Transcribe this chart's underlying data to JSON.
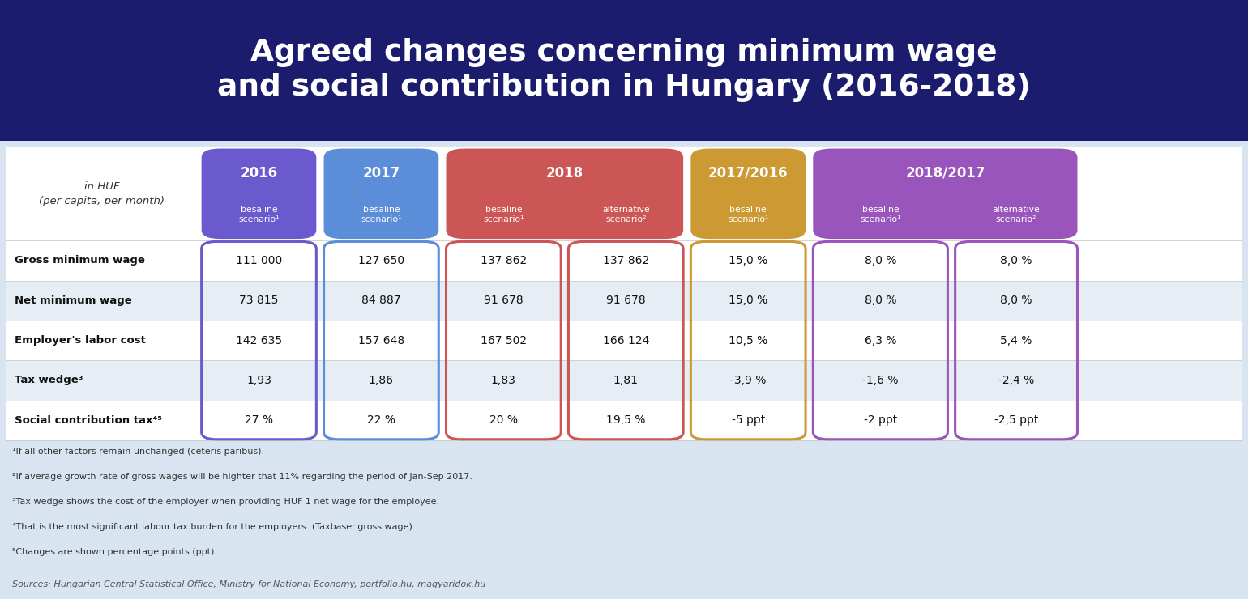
{
  "title_line1": "Agreed changes concerning minimum wage",
  "title_line2": "and social contribution in Hungary (2016-2018)",
  "title_bg_color": "#1c1c6e",
  "title_text_color": "#ffffff",
  "header_label": "in HUF\n(per capita, per month)",
  "row_labels": [
    "Gross minimum wage",
    "Net minimum wage",
    "Employer's labor cost",
    "Tax wedge³",
    "Social contribution tax⁴⁵"
  ],
  "table_data": [
    [
      "111 000",
      "127 650",
      "137 862",
      "137 862",
      "15,0 %",
      "8,0 %",
      "8,0 %"
    ],
    [
      "73 815",
      "84 887",
      "91 678",
      "91 678",
      "15,0 %",
      "8,0 %",
      "8,0 %"
    ],
    [
      "142 635",
      "157 648",
      "167 502",
      "166 124",
      "10,5 %",
      "6,3 %",
      "5,4 %"
    ],
    [
      "1,93",
      "1,86",
      "1,83",
      "1,81",
      "-3,9 %",
      "-1,6 %",
      "-2,4 %"
    ],
    [
      "27 %",
      "22 %",
      "20 %",
      "19,5 %",
      "-5 ppt",
      "-2 ppt",
      "-2,5 ppt"
    ]
  ],
  "groups": [
    {
      "label": "2016",
      "cols": [
        0
      ],
      "color": "#6a5acd"
    },
    {
      "label": "2017",
      "cols": [
        1
      ],
      "color": "#5b8dd9"
    },
    {
      "label": "2018",
      "cols": [
        2,
        3
      ],
      "color": "#cc5555"
    },
    {
      "label": "2017/2016",
      "cols": [
        4
      ],
      "color": "#cc9933"
    },
    {
      "label": "2018/2017",
      "cols": [
        5,
        6
      ],
      "color": "#9955bb"
    }
  ],
  "sub_labels": [
    "besaline\nscenario¹",
    "besaline\nscenario¹",
    "besaline\nscenario¹",
    "alternative\nscenario²",
    "besaline\nscenario¹",
    "besaline\nscenario¹",
    "alternative\nscenario²"
  ],
  "col_colors": [
    "#6a5acd",
    "#5b8dd9",
    "#cc5555",
    "#cc5555",
    "#cc9933",
    "#9955bb",
    "#9955bb"
  ],
  "footnotes": [
    "¹If all other factors remain unchanged (ceteris paribus).",
    "²If average growth rate of gross wages will be highter that 11% regarding the period of Jan-Sep 2017.",
    "³Tax wedge shows the cost of the employer when providing HUF 1 net wage for the employee.",
    "⁴That is the most significant labour tax burden for the employers. (Taxbase: gross wage)",
    "⁵Changes are shown percentage points (ppt)."
  ],
  "sources": "Sources: Hungarian Central Statistical Office, Ministry for National Economy, portfolio.hu, magyaridok.hu",
  "bg_color": "#d8e4f0",
  "row_colors": [
    "#ffffff",
    "#e6edf5",
    "#ffffff",
    "#e6edf5",
    "#ffffff"
  ]
}
